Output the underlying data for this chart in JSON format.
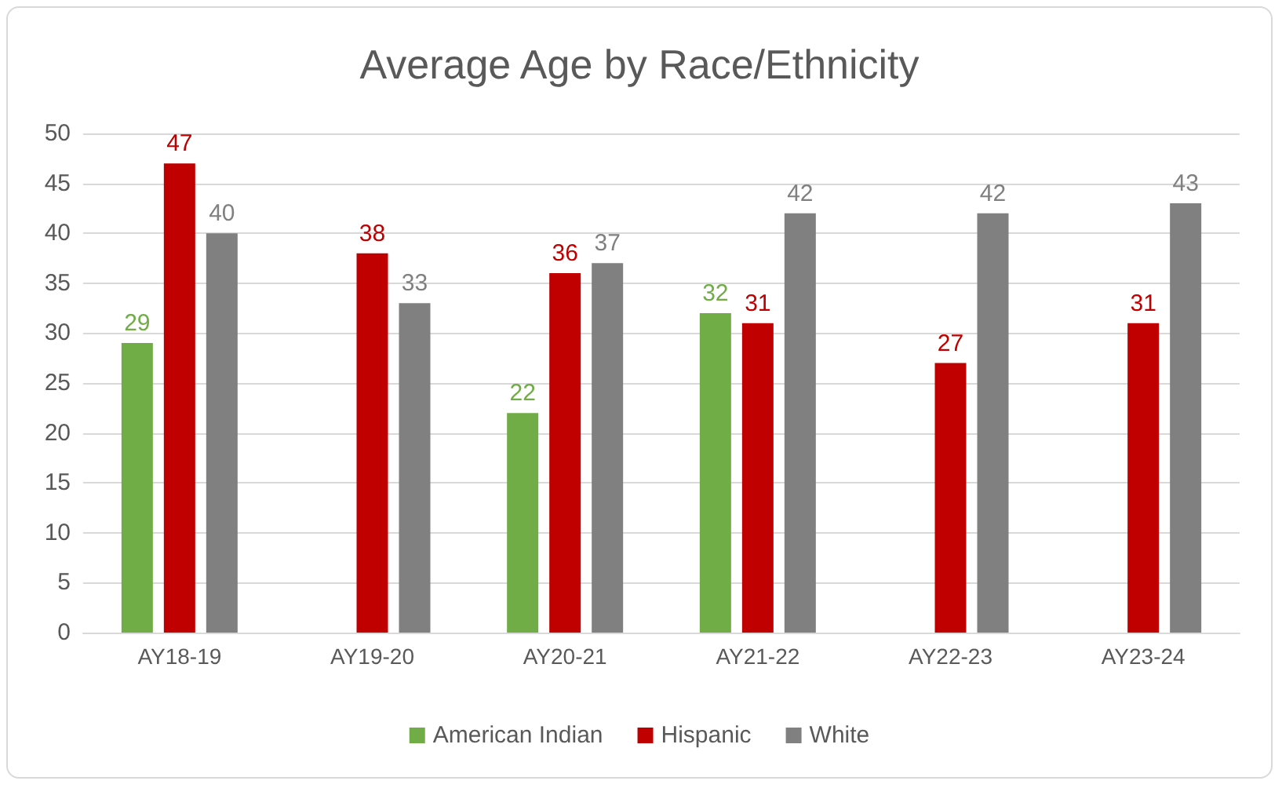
{
  "chart_data": {
    "type": "bar",
    "title": "Average Age by Race/Ethnicity",
    "categories": [
      "AY18-19",
      "AY19-20",
      "AY20-21",
      "AY21-22",
      "AY22-23",
      "AY23-24"
    ],
    "series": [
      {
        "name": "American Indian",
        "color": "#70ad47",
        "values": [
          29,
          null,
          22,
          32,
          null,
          null
        ]
      },
      {
        "name": "Hispanic",
        "color": "#c00000",
        "values": [
          47,
          38,
          36,
          31,
          27,
          31
        ]
      },
      {
        "name": "White",
        "color": "#808080",
        "values": [
          40,
          33,
          37,
          42,
          42,
          43
        ]
      }
    ],
    "ylim": [
      0,
      50
    ],
    "yticks": [
      0,
      5,
      10,
      15,
      20,
      25,
      30,
      35,
      40,
      45,
      50
    ],
    "grid": "y",
    "legend": "bottom",
    "data_labels": true
  }
}
